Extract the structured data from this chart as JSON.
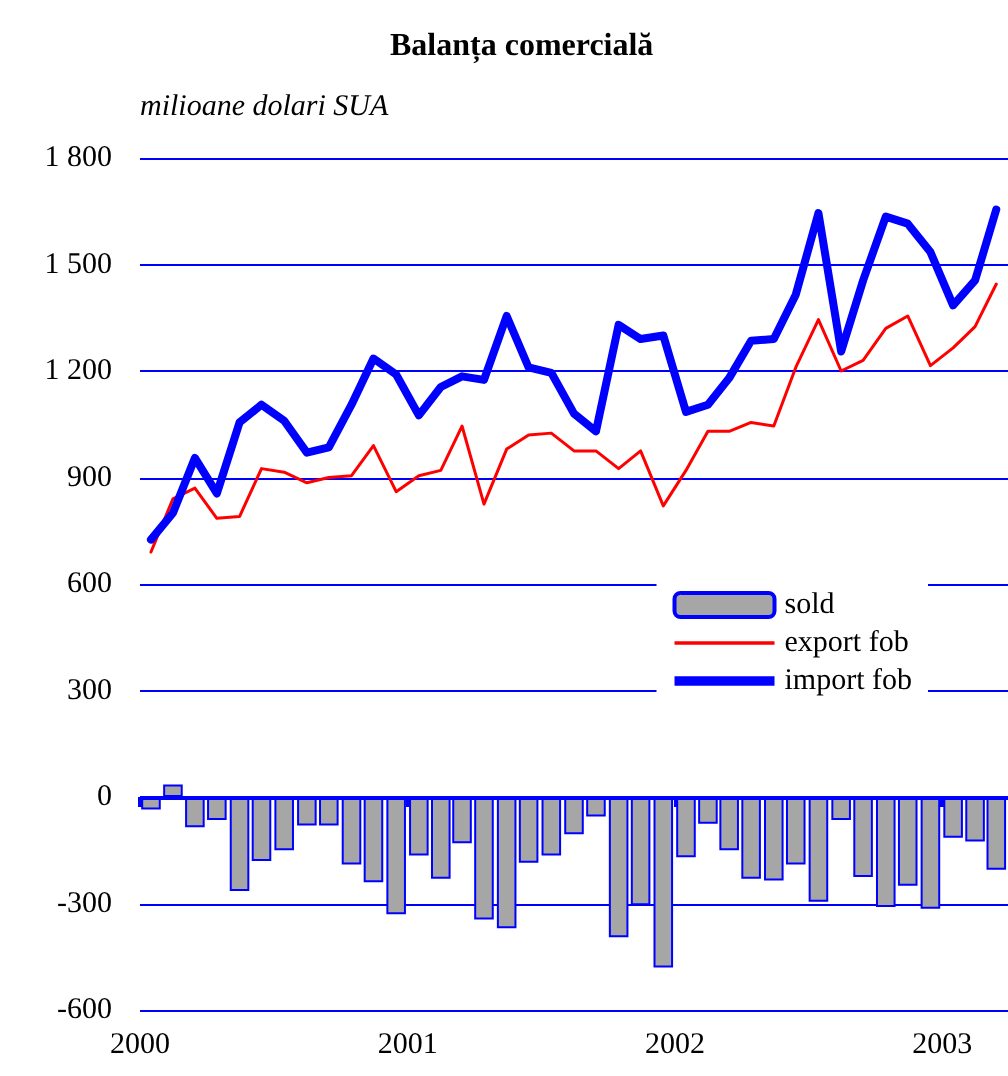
{
  "chart_data": {
    "type": "bar",
    "title": "Balanța comercială",
    "ylabel": "milioane dolari SUA",
    "x": [
      "2000-01-16",
      "2000-02-15",
      "2000-03-16",
      "2000-04-15",
      "2000-05-16",
      "2000-06-15",
      "2000-07-16",
      "2000-08-16",
      "2000-09-15",
      "2000-10-16",
      "2000-11-15",
      "2000-12-16",
      "2001-01-16",
      "2001-02-15",
      "2001-03-16",
      "2001-04-15",
      "2001-05-16",
      "2001-06-15",
      "2001-07-16",
      "2001-08-16",
      "2001-09-15",
      "2001-10-16",
      "2001-11-15",
      "2001-12-16",
      "2002-01-16",
      "2002-02-15",
      "2002-03-16",
      "2002-04-15",
      "2002-05-16",
      "2002-06-15",
      "2002-07-16",
      "2002-08-16",
      "2002-09-15",
      "2002-10-16",
      "2002-11-15",
      "2002-12-16",
      "2003-01-16",
      "2003-02-15",
      "2003-03-16"
    ],
    "series": [
      {
        "name": "sold",
        "color": "#a6a6a6",
        "values": [
          -35,
          35,
          -85,
          -65,
          -265,
          -180,
          -150,
          -80,
          -80,
          -190,
          -240,
          -330,
          -165,
          -230,
          -130,
          -345,
          -370,
          -185,
          -165,
          -105,
          -55,
          -395,
          -305,
          -480,
          -170,
          -75,
          -150,
          -230,
          -235,
          -190,
          -295,
          -65,
          -225,
          -310,
          -250,
          -315,
          -115,
          -125,
          -205
        ]
      },
      {
        "name": "export fob",
        "type": "line",
        "color": "#ff0000",
        "values": [
          690,
          840,
          870,
          785,
          790,
          925,
          915,
          885,
          900,
          905,
          990,
          860,
          905,
          920,
          1045,
          825,
          980,
          1020,
          1025,
          975,
          975,
          925,
          975,
          820,
          920,
          1030,
          1030,
          1055,
          1045,
          1210,
          1345,
          1200,
          1230,
          1320,
          1355,
          1215,
          1265,
          1325,
          1445
        ]
      },
      {
        "name": "import fob",
        "type": "line",
        "color": "#0000ff",
        "values": [
          725,
          800,
          955,
          855,
          1055,
          1105,
          1060,
          970,
          985,
          1105,
          1235,
          1190,
          1075,
          1155,
          1185,
          1175,
          1355,
          1210,
          1195,
          1080,
          1030,
          1330,
          1290,
          1300,
          1085,
          1105,
          1180,
          1285,
          1290,
          1415,
          1645,
          1255,
          1455,
          1635,
          1615,
          1535,
          1385,
          1455,
          1655
        ]
      }
    ],
    "xlim": [
      "2000-01",
      "2003-04"
    ],
    "xticks": [
      "2000",
      "2001",
      "2002",
      "2003"
    ],
    "ylim": [
      -600,
      1800
    ],
    "yticks": [
      {
        "value": -600,
        "label": "-600"
      },
      {
        "value": -300,
        "label": "-300"
      },
      {
        "value": 0,
        "label": "0"
      },
      {
        "value": 300,
        "label": "300"
      },
      {
        "value": 600,
        "label": "600"
      },
      {
        "value": 900,
        "label": "900"
      },
      {
        "value": 1200,
        "label": "1 200"
      },
      {
        "value": 1500,
        "label": "1 500"
      },
      {
        "value": 1800,
        "label": "1 800"
      }
    ],
    "ref_lines": [
      {
        "axis": "y",
        "value": 0,
        "color": "#0000ff"
      }
    ],
    "grid": "y",
    "legend": "right",
    "marker": "none"
  }
}
